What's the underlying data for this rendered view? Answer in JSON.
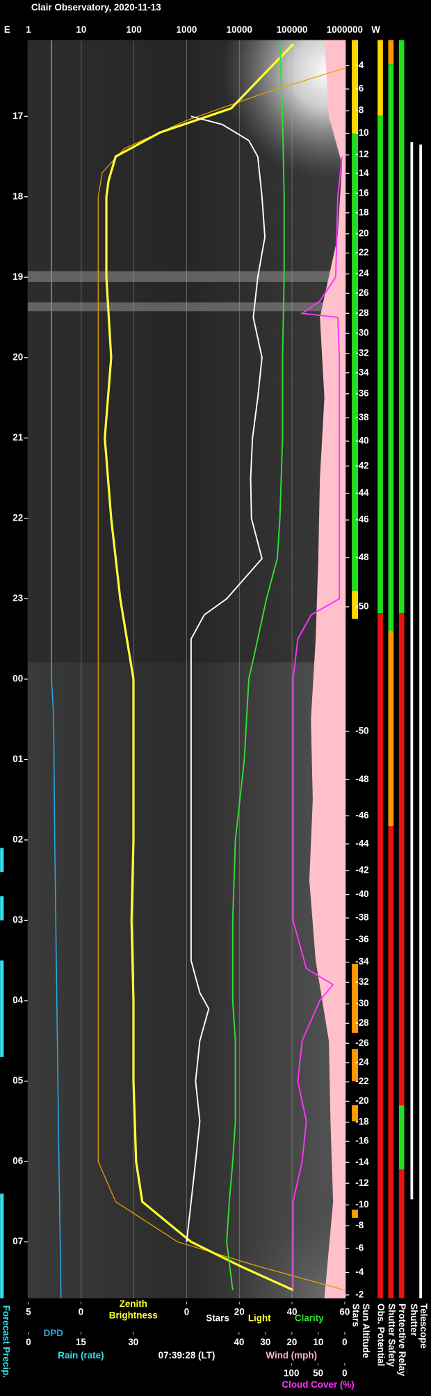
{
  "chart_data": {
    "type": "line",
    "title": "Clair Observatory, 2020-11-13",
    "east_label": "E",
    "west_label": "W",
    "timestamp": "07:39:28 (LT)",
    "tlim": [
      16.05,
      31.7
    ],
    "tticks": [
      17,
      18,
      19,
      20,
      21,
      22,
      23,
      {
        "value": 24,
        "label": "00"
      },
      {
        "value": 25,
        "label": "01"
      },
      {
        "value": 26,
        "label": "02"
      },
      {
        "value": 27,
        "label": "03"
      },
      {
        "value": 28,
        "label": "04"
      },
      {
        "value": 29,
        "label": "05"
      },
      {
        "value": 30,
        "label": "06"
      },
      {
        "value": 31,
        "label": "07"
      }
    ],
    "axes": [
      {
        "scale": "log",
        "label": [
          "Zenith",
          "Brightness"
        ],
        "color": "#ffff33",
        "lim": [
          1,
          1000000
        ],
        "ticks": [
          1,
          10,
          100,
          1000,
          10000,
          100000,
          1000000
        ],
        "grid": true
      },
      {
        "scale": "linear",
        "label": [
          "DPD"
        ],
        "color": "#2ba8e8",
        "lim": [
          5,
          0
        ],
        "ticks": [
          5,
          0
        ]
      },
      {
        "scale": "linear",
        "label": [
          "Rain (rate)"
        ],
        "color": "#33e0f0",
        "lim": [
          0,
          30
        ],
        "ticks": [
          0,
          15,
          30
        ]
      },
      {
        "scale": "linear",
        "label": [
          "Stars",
          "Light",
          "Clarity"
        ],
        "label_colors": [
          "#ffffff",
          "#ffff33",
          "#33dd33"
        ],
        "lim": [
          0,
          60
        ],
        "ticks": [
          0,
          20,
          40,
          60
        ]
      },
      {
        "scale": "linear",
        "label": [
          "Wind (mph)"
        ],
        "color": "#ffb6c1",
        "lim": [
          40,
          0
        ],
        "ticks": [
          40,
          30,
          20,
          10,
          0
        ]
      },
      {
        "scale": "linear",
        "label": [
          "Cloud Cover (%)"
        ],
        "color": "#ff33ff",
        "lim": [
          100,
          0
        ],
        "ticks": [
          100,
          50,
          0
        ]
      }
    ],
    "series": [
      {
        "kind": "area",
        "axis": 4,
        "color": "#ffc0cb",
        "t": [
          16.05,
          17,
          17.6,
          18.5,
          19.5,
          20.5,
          21.5,
          22.5,
          23.5,
          24.5,
          25.5,
          26.5,
          27.5,
          28.5,
          29.5,
          30.5,
          31.7
        ],
        "values": [
          7.7,
          6,
          1,
          2.7,
          9.4,
          7.7,
          9.4,
          10,
          11,
          12.8,
          12.1,
          13.4,
          11,
          6,
          5.4,
          4.4,
          7.7
        ]
      },
      {
        "kind": "line",
        "axis": 1,
        "color": "#2ba8e8",
        "width": 1.2,
        "t": [
          16.05,
          18,
          20,
          22,
          24,
          24.5,
          26,
          28,
          30,
          31.7
        ],
        "values": [
          2.8,
          2.8,
          2.8,
          2.8,
          2.8,
          2.6,
          2.5,
          2.3,
          2.1,
          1.9
        ]
      },
      {
        "kind": "line",
        "axis": 0,
        "color": "#e8a000",
        "width": 1,
        "t": [
          16.4,
          16.7,
          17.05,
          17.4,
          17.7,
          18,
          30,
          30.5,
          31,
          31.3,
          31.6
        ],
        "values": [
          1000000,
          33000,
          1000,
          66,
          25,
          21,
          21,
          45,
          680,
          22000,
          1000000
        ]
      },
      {
        "kind": "line",
        "axis": 0,
        "color": "#ffff33",
        "width": 2.5,
        "t": [
          16.1,
          16.5,
          16.9,
          17.2,
          17.5,
          17.8,
          18,
          19,
          20,
          21,
          22,
          23,
          24,
          25,
          26,
          27,
          28,
          29,
          30,
          30.5,
          31,
          31.3,
          31.6
        ],
        "values": [
          106000,
          27000,
          7000,
          313,
          45,
          33,
          30,
          30,
          37,
          28,
          37,
          55,
          98,
          98,
          98,
          90,
          98,
          98,
          110,
          144,
          1220,
          10300,
          106000
        ]
      },
      {
        "kind": "line",
        "axis": 3,
        "color": "#ffffff",
        "width": 1.5,
        "t": [
          17,
          17.1,
          17.3,
          17.5,
          18,
          18.5,
          19,
          19.5,
          20,
          20.5,
          21,
          21.5,
          22,
          22.5,
          23,
          23.2,
          23.5,
          24.5,
          25.5,
          26.5,
          27.5,
          27.9,
          28.1,
          28.5,
          29,
          29.5,
          30,
          30.5,
          31
        ],
        "values": [
          1.7,
          13.5,
          23.6,
          27,
          28.6,
          29.7,
          27,
          25.3,
          28.6,
          27,
          25,
          24.3,
          24.6,
          28.6,
          15.2,
          6.7,
          1.7,
          1.7,
          1.7,
          1.7,
          1.7,
          5,
          8.4,
          5,
          3.4,
          5,
          3.4,
          1.7,
          0
        ]
      },
      {
        "kind": "line",
        "axis": 3,
        "color": "#33dd33",
        "width": 1.5,
        "t": [
          16.1,
          17,
          18,
          19,
          20,
          21,
          22,
          22.5,
          23,
          23.5,
          24,
          25,
          26,
          27,
          28,
          28.5,
          29,
          29.5,
          30,
          30.5,
          31,
          31.6
        ],
        "values": [
          35.4,
          36.4,
          37,
          37,
          36.4,
          36.4,
          35.4,
          34.4,
          30.3,
          27,
          23.6,
          21.9,
          18.5,
          17.5,
          17.5,
          18.5,
          18.5,
          18.5,
          17.5,
          16.2,
          15.2,
          17.5
        ]
      },
      {
        "kind": "line",
        "axis": 5,
        "color": "#ff33ff",
        "width": 1.5,
        "t": [
          17.5,
          18,
          19,
          19.3,
          19.45,
          19.5,
          20,
          21,
          22,
          23,
          23.2,
          23.5,
          24,
          27,
          27.6,
          27.8,
          28,
          28.5,
          29,
          29.5,
          30,
          30.5,
          31,
          31.6
        ],
        "values": [
          5,
          13,
          17,
          47,
          80,
          13,
          10,
          10,
          10,
          10,
          63,
          88,
          97,
          97,
          72,
          22,
          47,
          80,
          88,
          72,
          80,
          97,
          97,
          97
        ]
      }
    ],
    "forecast_precip_label": "Forecast Precip.",
    "forecast_precip": [
      [
        26.1,
        26.4
      ],
      [
        26.7,
        27.0
      ],
      [
        27.5,
        28.7
      ],
      [
        30.4,
        31.7
      ]
    ],
    "sun_altitude": {
      "label": "Sun Altitude",
      "ticks": [
        {
          "altitude": -4,
          "t": 16.37
        },
        {
          "altitude": -6,
          "t": 16.66
        },
        {
          "altitude": -8,
          "t": 16.93
        },
        {
          "altitude": -10,
          "t": 17.21
        },
        {
          "altitude": -12,
          "t": 17.48
        },
        {
          "altitude": -14,
          "t": 17.71
        },
        {
          "altitude": -16,
          "t": 17.96
        },
        {
          "altitude": -18,
          "t": 18.2
        },
        {
          "altitude": -20,
          "t": 18.46
        },
        {
          "altitude": -22,
          "t": 18.7
        },
        {
          "altitude": -24,
          "t": 18.96
        },
        {
          "altitude": -26,
          "t": 19.2
        },
        {
          "altitude": -28,
          "t": 19.45
        },
        {
          "altitude": -30,
          "t": 19.7
        },
        {
          "altitude": -32,
          "t": 19.95
        },
        {
          "altitude": -34,
          "t": 20.19
        },
        {
          "altitude": -36,
          "t": 20.45
        },
        {
          "altitude": -38,
          "t": 20.75
        },
        {
          "altitude": -40,
          "t": 21.04
        },
        {
          "altitude": -42,
          "t": 21.35
        },
        {
          "altitude": -44,
          "t": 21.69
        },
        {
          "altitude": -46,
          "t": 22.02
        },
        {
          "altitude": -48,
          "t": 22.49
        },
        {
          "altitude": -50,
          "t": 23.1
        },
        {
          "altitude": -50,
          "t": 24.65
        },
        {
          "altitude": -48,
          "t": 25.25
        },
        {
          "altitude": -46,
          "t": 25.7
        },
        {
          "altitude": -44,
          "t": 26.05
        },
        {
          "altitude": -42,
          "t": 26.38
        },
        {
          "altitude": -40,
          "t": 26.68
        },
        {
          "altitude": -38,
          "t": 26.97
        },
        {
          "altitude": -36,
          "t": 27.24
        },
        {
          "altitude": -34,
          "t": 27.52
        },
        {
          "altitude": -32,
          "t": 27.77
        },
        {
          "altitude": -30,
          "t": 28.04
        },
        {
          "altitude": -28,
          "t": 28.28
        },
        {
          "altitude": -26,
          "t": 28.53
        },
        {
          "altitude": -24,
          "t": 28.77
        },
        {
          "altitude": -22,
          "t": 29.01
        },
        {
          "altitude": -20,
          "t": 29.25
        },
        {
          "altitude": -18,
          "t": 29.51
        },
        {
          "altitude": -16,
          "t": 29.75
        },
        {
          "altitude": -14,
          "t": 30.01
        },
        {
          "altitude": -12,
          "t": 30.27
        },
        {
          "altitude": -10,
          "t": 30.54
        },
        {
          "altitude": -8,
          "t": 30.8
        },
        {
          "altitude": -6,
          "t": 31.08
        },
        {
          "altitude": -4,
          "t": 31.38
        },
        {
          "altitude": -2,
          "t": 31.66
        }
      ]
    },
    "status": [
      {
        "name": "Stars",
        "segments": [
          {
            "from": 16.05,
            "to": 17.21,
            "color": "#ffd700"
          },
          {
            "from": 17.21,
            "to": 22.9,
            "color": "#22dd22"
          },
          {
            "from": 22.9,
            "to": 23.25,
            "color": "#ffd700"
          },
          {
            "from": 27.54,
            "to": 28.4,
            "color": "#ff9900"
          },
          {
            "from": 28.6,
            "to": 29.0,
            "color": "#ff9900"
          },
          {
            "from": 29.3,
            "to": 29.5,
            "color": "#ff9900"
          },
          {
            "from": 30.6,
            "to": 30.7,
            "color": "#ff9900"
          }
        ]
      },
      {
        "name": "Obs. Potential",
        "segments": [
          {
            "from": 16.05,
            "to": 16.99,
            "color": "#ffd700"
          },
          {
            "from": 16.99,
            "to": 23.18,
            "color": "#22dd22"
          },
          {
            "from": 23.18,
            "to": 31.7,
            "color": "#ee1111"
          }
        ]
      },
      {
        "name": "Shutter Safety",
        "segments": [
          {
            "from": 16.05,
            "to": 16.35,
            "color": "#ff9900"
          },
          {
            "from": 16.35,
            "to": 23.4,
            "color": "#22dd22"
          },
          {
            "from": 23.4,
            "to": 25.83,
            "color": "#ff9900"
          },
          {
            "from": 25.83,
            "to": 31.7,
            "color": "#ee1111"
          }
        ]
      },
      {
        "name": "Protective Relay",
        "segments": [
          {
            "from": 16.05,
            "to": 23.18,
            "color": "#22dd22"
          },
          {
            "from": 23.18,
            "to": 29.3,
            "color": "#ee1111"
          },
          {
            "from": 29.3,
            "to": 30.1,
            "color": "#22dd22"
          },
          {
            "from": 30.1,
            "to": 31.7,
            "color": "#ee1111"
          }
        ]
      },
      {
        "name": "Shutter",
        "segments": [
          {
            "from": 17.32,
            "to": 30.47,
            "color": "#ffffff"
          }
        ]
      },
      {
        "name": "Telescope",
        "segments": [
          {
            "from": 17.35,
            "to": 31.7,
            "color": "#ffffff"
          }
        ]
      }
    ]
  }
}
